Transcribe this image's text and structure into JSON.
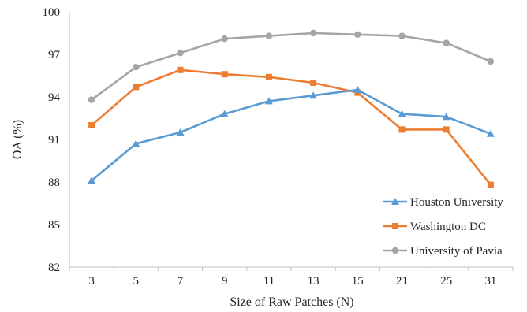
{
  "chart_data": {
    "type": "line",
    "title": "",
    "xlabel": "Size of Raw Patches (N)",
    "ylabel": "OA (%)",
    "categories": [
      "3",
      "5",
      "7",
      "9",
      "11",
      "13",
      "15",
      "21",
      "25",
      "31"
    ],
    "ylim": [
      82,
      100
    ],
    "yticks": [
      "82",
      "85",
      "88",
      "91",
      "94",
      "97",
      "100"
    ],
    "grid": false,
    "legend_position": "bottom-right",
    "series": [
      {
        "name": "Houston University",
        "color": "#5b9bd5",
        "marker": "triangle",
        "values": [
          88.1,
          90.7,
          91.5,
          92.8,
          93.7,
          94.1,
          94.5,
          92.8,
          92.6,
          91.4
        ]
      },
      {
        "name": "Washington DC",
        "color": "#ed7d31",
        "marker": "square",
        "values": [
          92.0,
          94.7,
          95.9,
          95.6,
          95.4,
          95.0,
          94.3,
          91.7,
          91.7,
          87.8
        ]
      },
      {
        "name": "University of Pavia",
        "color": "#a5a5a5",
        "marker": "circle",
        "values": [
          93.8,
          96.1,
          97.1,
          98.1,
          98.3,
          98.5,
          98.4,
          98.3,
          97.8,
          96.5
        ]
      }
    ]
  }
}
